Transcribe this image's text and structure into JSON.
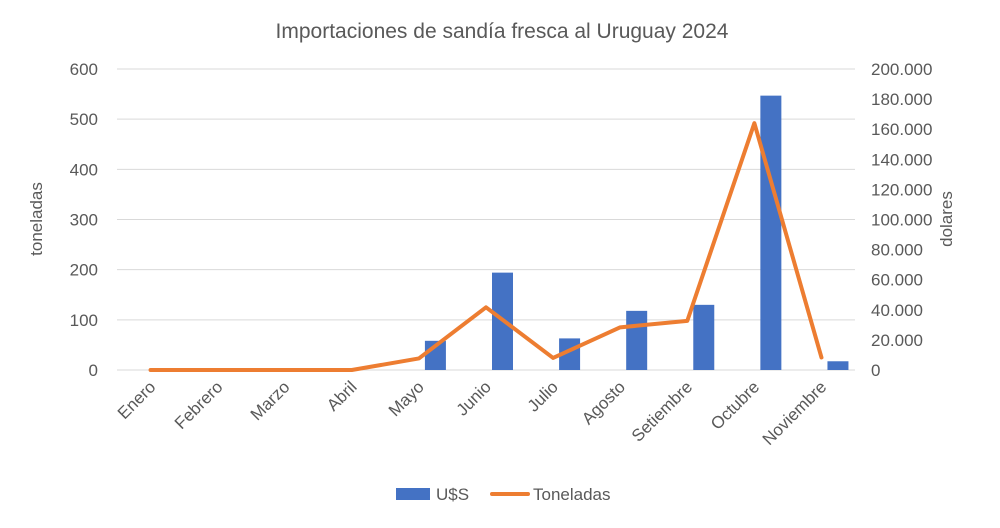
{
  "chart_data": {
    "type": "bar+line",
    "title": "Importaciones de sandía fresca al Uruguay 2024",
    "categories": [
      "Enero",
      "Febrero",
      "Marzo",
      "Abril",
      "Mayo",
      "Junio",
      "Julio",
      "Agosto",
      "Setiembre",
      "Octubre",
      "Noviembre"
    ],
    "series": [
      {
        "name": "U$S",
        "type": "bar",
        "axis": "right",
        "color": "#4472C4",
        "values": [
          0,
          0,
          0,
          0,
          19400,
          64700,
          21000,
          39300,
          43300,
          182300,
          5800
        ]
      },
      {
        "name": "Toneladas",
        "type": "line",
        "axis": "left",
        "color": "#ED7D31",
        "values": [
          0,
          0,
          0,
          0,
          23,
          125,
          24,
          85,
          98,
          492,
          25
        ]
      }
    ],
    "y_left": {
      "label": "toneladas",
      "ylim": [
        0,
        600
      ],
      "ticks": [
        "0",
        "100",
        "200",
        "300",
        "400",
        "500",
        "600"
      ]
    },
    "y_right": {
      "label": "dolares",
      "ylim": [
        0,
        200000
      ],
      "ticks": [
        "0",
        "20.000",
        "40.000",
        "60.000",
        "80.000",
        "100.000",
        "120.000",
        "140.000",
        "160.000",
        "180.000",
        "200.000"
      ]
    },
    "grid": true,
    "legend_position": "bottom"
  }
}
